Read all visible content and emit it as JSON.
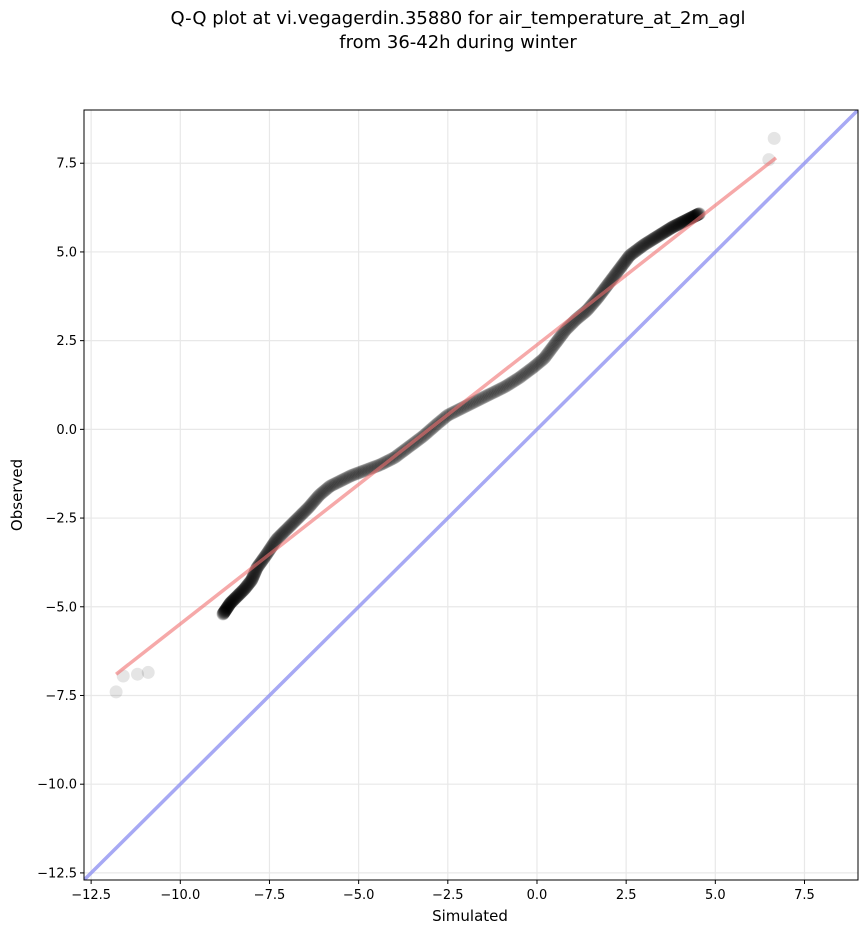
{
  "chart_data": {
    "type": "scatter",
    "title": [
      "Q-Q plot at vi.vegagerdin.35880 for air_temperature_at_2m_agl",
      "from 36-42h during winter"
    ],
    "xlabel": "Simulated",
    "ylabel": "Observed",
    "xlim": [
      -12.7,
      9.0
    ],
    "ylim": [
      -12.7,
      9.0
    ],
    "xticks": [
      -12.5,
      -10.0,
      -7.5,
      -5.0,
      -2.5,
      0.0,
      2.5,
      5.0,
      7.5
    ],
    "yticks": [
      -12.5,
      -10.0,
      -7.5,
      -5.0,
      -2.5,
      0.0,
      2.5,
      5.0,
      7.5
    ],
    "xtick_labels": [
      "−12.5",
      "−10.0",
      "−7.5",
      "−5.0",
      "−2.5",
      "0.0",
      "2.5",
      "5.0",
      "7.5"
    ],
    "ytick_labels": [
      "−12.5",
      "−10.0",
      "−7.5",
      "−5.0",
      "−2.5",
      "0.0",
      "2.5",
      "5.0",
      "7.5"
    ],
    "grid": true,
    "points_curve": [
      [
        -11.8,
        -7.4
      ],
      [
        -11.6,
        -6.95
      ],
      [
        -11.2,
        -6.9
      ],
      [
        -10.9,
        -6.85
      ],
      [
        -10.35,
        -6.75
      ],
      [
        -10.1,
        -6.5
      ],
      [
        -10.0,
        -6.2
      ],
      [
        -9.8,
        -6.0
      ],
      [
        -9.6,
        -5.85
      ],
      [
        -9.4,
        -5.7
      ],
      [
        -9.1,
        -5.45
      ],
      [
        -8.8,
        -5.2
      ],
      [
        -8.6,
        -4.9
      ],
      [
        -8.4,
        -4.7
      ],
      [
        -8.2,
        -4.5
      ],
      [
        -8.0,
        -4.25
      ],
      [
        -7.85,
        -3.9
      ],
      [
        -7.6,
        -3.55
      ],
      [
        -7.3,
        -3.1
      ],
      [
        -7.0,
        -2.8
      ],
      [
        -6.7,
        -2.5
      ],
      [
        -6.4,
        -2.2
      ],
      [
        -6.1,
        -1.85
      ],
      [
        -5.8,
        -1.6
      ],
      [
        -5.5,
        -1.45
      ],
      [
        -5.2,
        -1.3
      ],
      [
        -4.8,
        -1.15
      ],
      [
        -4.4,
        -1.0
      ],
      [
        -4.0,
        -0.8
      ],
      [
        -3.6,
        -0.5
      ],
      [
        -3.2,
        -0.2
      ],
      [
        -2.8,
        0.15
      ],
      [
        -2.5,
        0.4
      ],
      [
        -2.1,
        0.6
      ],
      [
        -1.7,
        0.8
      ],
      [
        -1.3,
        1.0
      ],
      [
        -0.9,
        1.2
      ],
      [
        -0.5,
        1.45
      ],
      [
        -0.1,
        1.75
      ],
      [
        0.2,
        2.0
      ],
      [
        0.5,
        2.4
      ],
      [
        0.8,
        2.8
      ],
      [
        1.1,
        3.1
      ],
      [
        1.4,
        3.35
      ],
      [
        1.7,
        3.7
      ],
      [
        2.0,
        4.1
      ],
      [
        2.3,
        4.5
      ],
      [
        2.6,
        4.9
      ],
      [
        3.0,
        5.2
      ],
      [
        3.4,
        5.45
      ],
      [
        3.8,
        5.7
      ],
      [
        4.2,
        5.9
      ],
      [
        4.6,
        6.1
      ],
      [
        5.0,
        6.4
      ],
      [
        5.3,
        6.65
      ],
      [
        5.55,
        6.8
      ],
      [
        5.75,
        7.05
      ],
      [
        6.0,
        7.35
      ],
      [
        6.2,
        7.55
      ],
      [
        6.5,
        7.6
      ],
      [
        6.65,
        8.2
      ]
    ],
    "n_points": 520,
    "fit_line": [
      [
        -11.8,
        -6.9
      ],
      [
        6.7,
        7.65
      ]
    ],
    "identity_line": [
      [
        -12.7,
        -12.7
      ],
      [
        9.0,
        9.0
      ]
    ],
    "colors": {
      "points": "#000000",
      "fit_line": "#f07070",
      "identity_line": "#8a8cf0",
      "grid": "#e8e8e8"
    }
  }
}
